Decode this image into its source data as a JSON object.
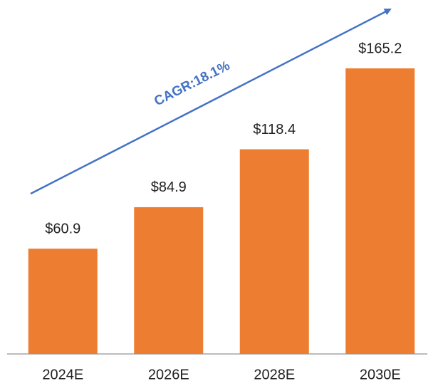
{
  "chart_data": {
    "type": "bar",
    "categories": [
      "2024E",
      "2026E",
      "2028E",
      "2030E"
    ],
    "values": [
      60.9,
      84.9,
      118.4,
      165.2
    ],
    "value_labels": [
      "$60.9",
      "$84.9",
      "$118.4",
      "$165.2"
    ],
    "color": "#ed7d31",
    "annotation": "CAGR:18.1%"
  }
}
